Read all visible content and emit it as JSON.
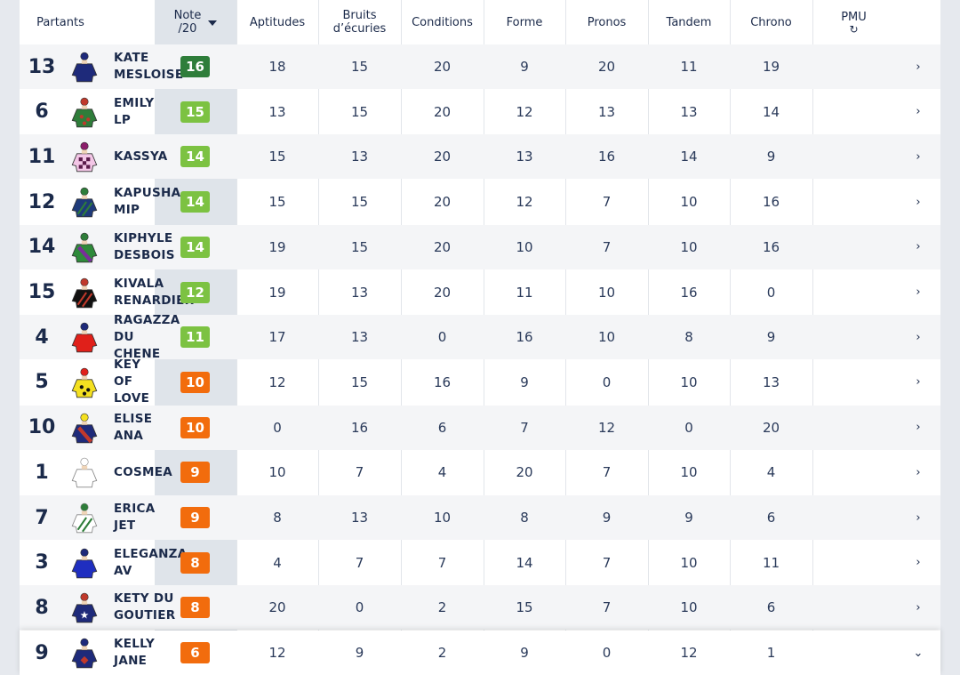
{
  "columns": {
    "partants": "Partants",
    "note_line1": "Note",
    "note_line2": "/20",
    "aptitudes": "Aptitudes",
    "bruits_line1": "Bruits",
    "bruits_line2": "d’écuries",
    "conditions": "Conditions",
    "forme": "Forme",
    "pronos": "Pronos",
    "tandem": "Tandem",
    "chrono": "Chrono",
    "pmu": "PMU",
    "pmu_icon": "refresh-icon"
  },
  "colors": {
    "dark_green": "#2e7d3a",
    "light_green": "#7cc242",
    "orange": "#f26c0d"
  },
  "rows": [
    {
      "num": "13",
      "name": "KATE\nMESLOISE",
      "note": "16",
      "note_color": "#2e7d3a",
      "aptitudes": "18",
      "bruits": "15",
      "conditions": "20",
      "forme": "9",
      "pronos": "20",
      "tandem": "11",
      "chrono": "19",
      "chevron": "›"
    },
    {
      "num": "6",
      "name": "EMILY\nLP",
      "note": "15",
      "note_color": "#7cc242",
      "aptitudes": "13",
      "bruits": "15",
      "conditions": "20",
      "forme": "12",
      "pronos": "13",
      "tandem": "13",
      "chrono": "14",
      "chevron": "›"
    },
    {
      "num": "11",
      "name": "KASSYA",
      "note": "14",
      "note_color": "#7cc242",
      "aptitudes": "15",
      "bruits": "13",
      "conditions": "20",
      "forme": "13",
      "pronos": "16",
      "tandem": "14",
      "chrono": "9",
      "chevron": "›"
    },
    {
      "num": "12",
      "name": "KAPUSHA\nMIP",
      "note": "14",
      "note_color": "#7cc242",
      "aptitudes": "15",
      "bruits": "15",
      "conditions": "20",
      "forme": "12",
      "pronos": "7",
      "tandem": "10",
      "chrono": "16",
      "chevron": "›"
    },
    {
      "num": "14",
      "name": "KIPHYLE\nDESBOIS",
      "note": "14",
      "note_color": "#7cc242",
      "aptitudes": "19",
      "bruits": "15",
      "conditions": "20",
      "forme": "10",
      "pronos": "7",
      "tandem": "10",
      "chrono": "16",
      "chevron": "›"
    },
    {
      "num": "15",
      "name": "KIVALA\nRENARDIER",
      "note": "12",
      "note_color": "#7cc242",
      "aptitudes": "19",
      "bruits": "13",
      "conditions": "20",
      "forme": "11",
      "pronos": "10",
      "tandem": "16",
      "chrono": "0",
      "chevron": "›"
    },
    {
      "num": "4",
      "name": "RAGAZZA\nDU\nCHENE",
      "note": "11",
      "note_color": "#7cc242",
      "aptitudes": "17",
      "bruits": "13",
      "conditions": "0",
      "forme": "16",
      "pronos": "10",
      "tandem": "8",
      "chrono": "9",
      "chevron": "›"
    },
    {
      "num": "5",
      "name": "KEY\nOF\nLOVE",
      "note": "10",
      "note_color": "#f26c0d",
      "aptitudes": "12",
      "bruits": "15",
      "conditions": "16",
      "forme": "9",
      "pronos": "0",
      "tandem": "10",
      "chrono": "13",
      "chevron": "›"
    },
    {
      "num": "10",
      "name": "ELISE\nANA",
      "note": "10",
      "note_color": "#f26c0d",
      "aptitudes": "0",
      "bruits": "16",
      "conditions": "6",
      "forme": "7",
      "pronos": "12",
      "tandem": "0",
      "chrono": "20",
      "chevron": "›"
    },
    {
      "num": "1",
      "name": "COSMEA",
      "note": "9",
      "note_color": "#f26c0d",
      "aptitudes": "10",
      "bruits": "7",
      "conditions": "4",
      "forme": "20",
      "pronos": "7",
      "tandem": "10",
      "chrono": "4",
      "chevron": "›"
    },
    {
      "num": "7",
      "name": "ERICA\nJET",
      "note": "9",
      "note_color": "#f26c0d",
      "aptitudes": "8",
      "bruits": "13",
      "conditions": "10",
      "forme": "8",
      "pronos": "9",
      "tandem": "9",
      "chrono": "6",
      "chevron": "›"
    },
    {
      "num": "3",
      "name": "ELEGANZA\nAV",
      "note": "8",
      "note_color": "#f26c0d",
      "aptitudes": "4",
      "bruits": "7",
      "conditions": "7",
      "forme": "14",
      "pronos": "7",
      "tandem": "10",
      "chrono": "11",
      "chevron": "›"
    },
    {
      "num": "8",
      "name": "KETY DU\nGOUTIER",
      "note": "8",
      "note_color": "#f26c0d",
      "aptitudes": "20",
      "bruits": "0",
      "conditions": "2",
      "forme": "15",
      "pronos": "7",
      "tandem": "10",
      "chrono": "6",
      "chevron": "›"
    },
    {
      "num": "9",
      "name": "KELLY\nJANE",
      "note": "6",
      "note_color": "#f26c0d",
      "aptitudes": "12",
      "bruits": "9",
      "conditions": "2",
      "forme": "9",
      "pronos": "0",
      "tandem": "12",
      "chrono": "1",
      "chevron": "⌄"
    }
  ]
}
